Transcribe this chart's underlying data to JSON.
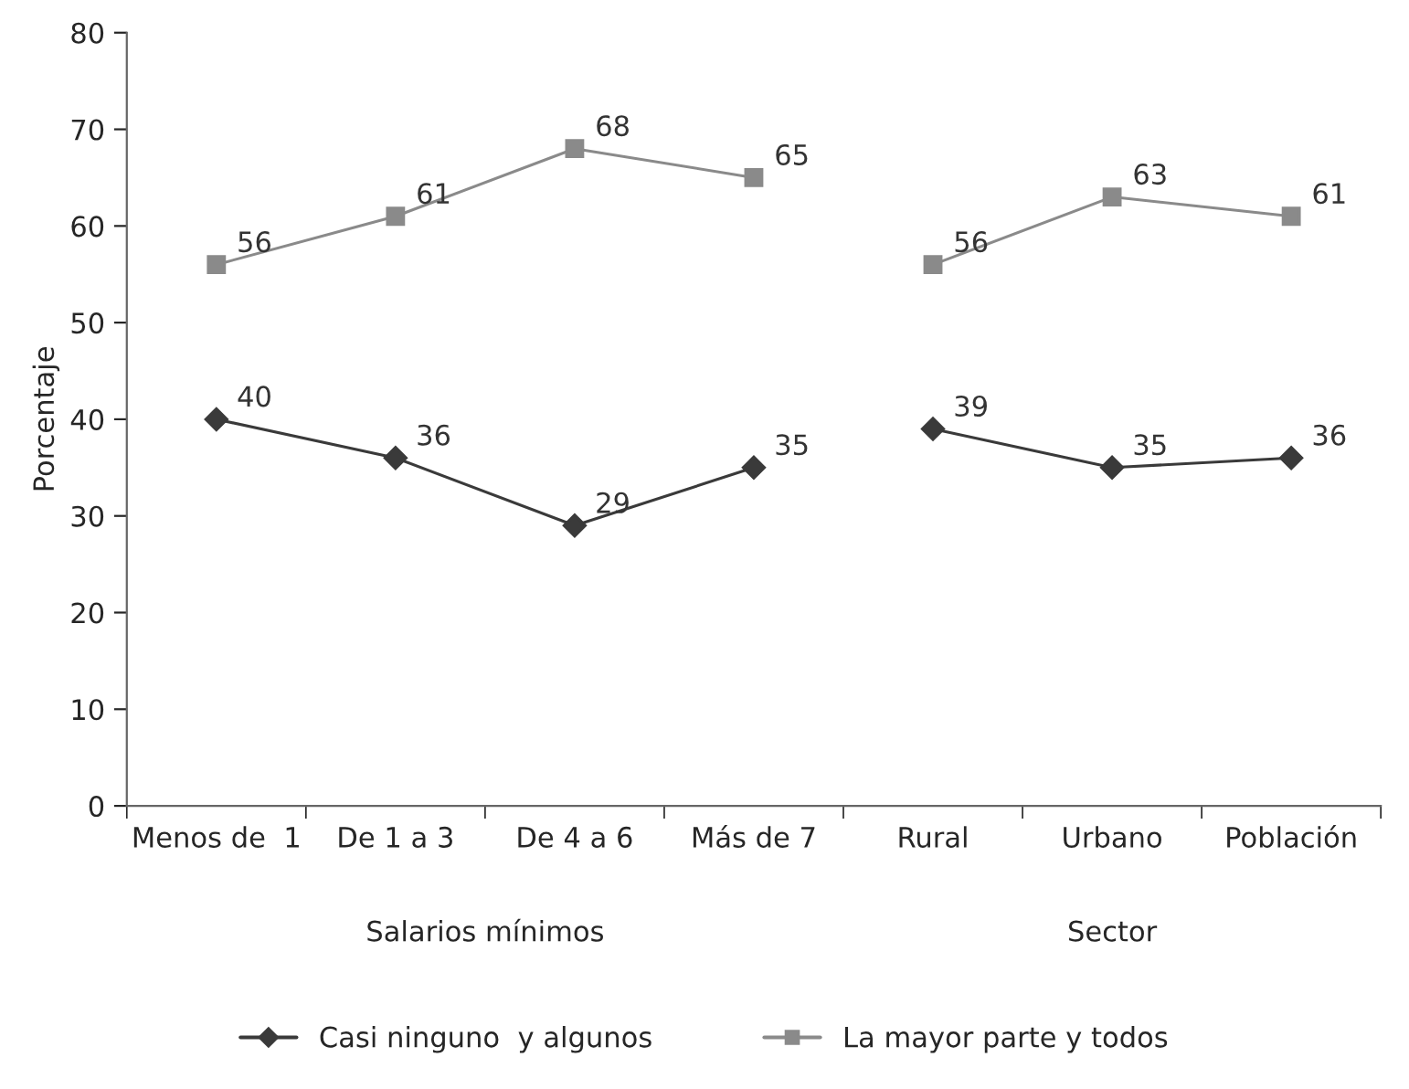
{
  "chart_data": {
    "type": "line",
    "ylabel": "Porcentaje",
    "categories": [
      "Menos de  1",
      "De 1 a 3",
      "De 4 a 6",
      "Más de 7",
      "Rural",
      "Urbano",
      "Población"
    ],
    "series": [
      {
        "name": "Casi ninguno  y algunos",
        "color": "#3a3a3a",
        "marker": "diamond",
        "values": [
          40,
          36,
          29,
          35,
          null,
          null,
          null
        ]
      },
      {
        "color": "#3a3a3a",
        "marker": "diamond",
        "values": [
          null,
          null,
          null,
          null,
          39,
          35,
          36
        ]
      },
      {
        "name": "La mayor parte y todos",
        "color": "#8a8a8a",
        "marker": "square",
        "values": [
          56,
          61,
          68,
          65,
          null,
          null,
          null
        ]
      },
      {
        "color": "#8a8a8a",
        "marker": "square",
        "values": [
          null,
          null,
          null,
          null,
          56,
          63,
          61
        ]
      }
    ],
    "ylim": [
      0,
      80
    ],
    "yticks": [
      0,
      10,
      20,
      30,
      40,
      50,
      60,
      70,
      80
    ],
    "annotations": [
      "Salarios mínimos",
      "Sector"
    ],
    "data_labels": true,
    "legend": "bottom",
    "grid": false
  }
}
